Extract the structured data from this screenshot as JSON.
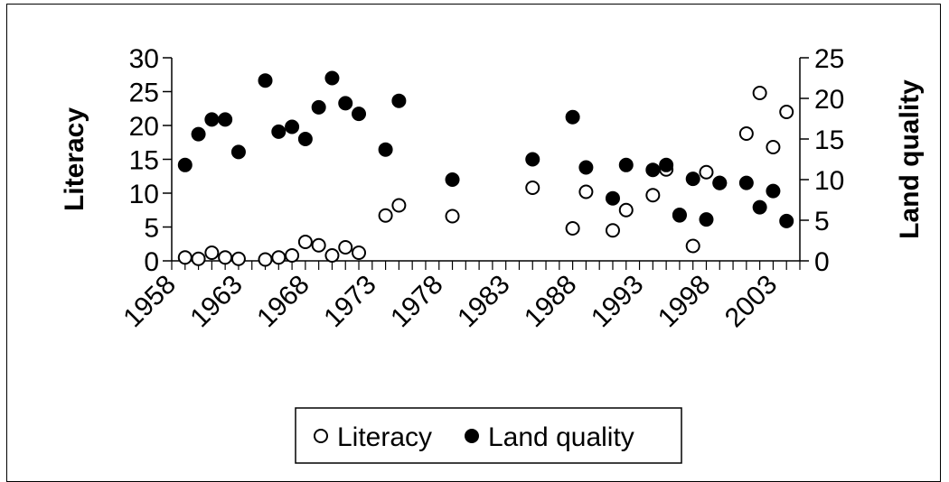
{
  "chart_data": {
    "type": "scatter",
    "title": "",
    "xlabel": "",
    "ylabel": "Literacy",
    "y2label": "Land quality",
    "x_ticks": [
      "1958",
      "1963",
      "1968",
      "1973",
      "1978",
      "1983",
      "1988",
      "1993",
      "1998",
      "2003"
    ],
    "xlim": [
      1958,
      2005
    ],
    "ylim": [
      0,
      30
    ],
    "y_ticks": [
      0,
      5,
      10,
      15,
      20,
      25,
      30
    ],
    "y2lim": [
      0,
      25
    ],
    "y2_ticks": [
      0,
      5,
      10,
      15,
      20,
      25
    ],
    "grid": false,
    "legend": "bottom",
    "colors": {
      "literacy": "#ffffff",
      "land_quality": "#000000",
      "marker_edge": "#000000"
    },
    "series": [
      {
        "name": "Literacy",
        "axis": "left",
        "marker": "open-circle",
        "x": [
          1959,
          1960,
          1961,
          1962,
          1963,
          1965,
          1966,
          1967,
          1968,
          1969,
          1970,
          1971,
          1972,
          1974,
          1975,
          1979,
          1985,
          1988,
          1989,
          1991,
          1992,
          1994,
          1995,
          1996,
          1997,
          1998,
          1999,
          2001,
          2002,
          2003,
          2004
        ],
        "y": [
          0.5,
          0.3,
          1.2,
          0.5,
          0.3,
          0.2,
          0.5,
          0.8,
          2.8,
          2.3,
          0.8,
          2.0,
          1.2,
          6.7,
          8.2,
          6.6,
          10.8,
          4.8,
          10.2,
          4.5,
          7.5,
          9.7,
          13.5,
          6.8,
          2.2,
          13.1,
          11.5,
          18.8,
          24.8,
          16.8,
          22.0
        ]
      },
      {
        "name": "Land quality",
        "axis": "right",
        "marker": "filled-circle",
        "x": [
          1959,
          1960,
          1961,
          1962,
          1963,
          1965,
          1966,
          1967,
          1968,
          1969,
          1970,
          1971,
          1972,
          1974,
          1975,
          1979,
          1985,
          1988,
          1989,
          1991,
          1992,
          1994,
          1995,
          1996,
          1997,
          1998,
          1999,
          2001,
          2002,
          2003,
          2004
        ],
        "y": [
          11.8,
          15.6,
          17.4,
          17.4,
          13.4,
          22.2,
          15.9,
          16.5,
          15.0,
          18.9,
          22.5,
          19.4,
          18.1,
          13.7,
          19.7,
          10.0,
          12.5,
          17.7,
          11.5,
          7.7,
          11.8,
          11.2,
          11.8,
          5.6,
          10.1,
          5.1,
          9.6,
          9.6,
          6.6,
          8.6,
          4.9
        ]
      }
    ]
  }
}
